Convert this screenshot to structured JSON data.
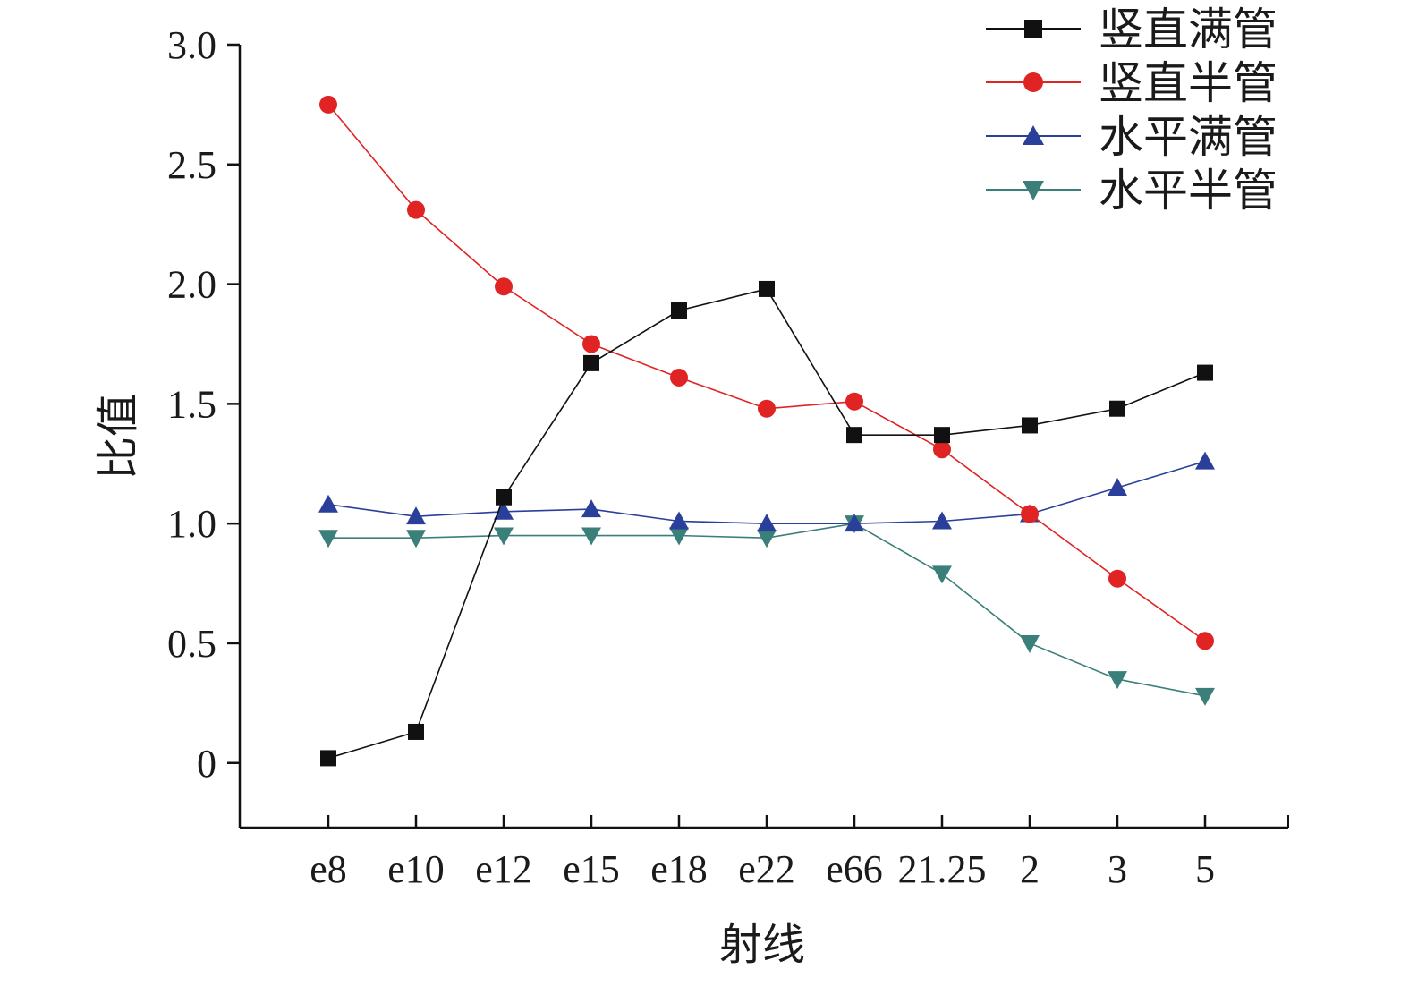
{
  "chart_data": {
    "type": "line",
    "xlabel": "射线",
    "ylabel": "比值",
    "categories": [
      "e8",
      "e10",
      "e12",
      "e15",
      "e18",
      "e22",
      "e66",
      "21.25",
      "2",
      "3",
      "5"
    ],
    "ylim": [
      -0.27,
      3.0
    ],
    "yticks": [
      0,
      0.5,
      1.0,
      1.5,
      2.0,
      2.5,
      3.0
    ],
    "ytick_labels": [
      "0",
      "0.5",
      "1.0",
      "1.5",
      "2.0",
      "2.5",
      "3.0"
    ],
    "grid": false,
    "legend_position": "top-right",
    "series": [
      {
        "name": "竖直满管",
        "color": "#111111",
        "marker": "square",
        "values": [
          0.02,
          0.13,
          1.11,
          1.67,
          1.89,
          1.98,
          1.37,
          1.37,
          1.41,
          1.48,
          1.63
        ]
      },
      {
        "name": "竖直半管",
        "color": "#e02424",
        "marker": "circle",
        "values": [
          2.75,
          2.31,
          1.99,
          1.75,
          1.61,
          1.48,
          1.51,
          1.31,
          1.04,
          0.77,
          0.51
        ]
      },
      {
        "name": "水平满管",
        "color": "#2a3f9a",
        "marker": "triangle-up",
        "values": [
          1.08,
          1.03,
          1.05,
          1.06,
          1.01,
          1.0,
          1.0,
          1.01,
          1.04,
          1.15,
          1.26
        ]
      },
      {
        "name": "水平半管",
        "color": "#3a7f7a",
        "marker": "triangle-down",
        "values": [
          0.94,
          0.94,
          0.95,
          0.95,
          0.95,
          0.94,
          1.0,
          0.79,
          0.5,
          0.35,
          0.28
        ]
      }
    ]
  }
}
